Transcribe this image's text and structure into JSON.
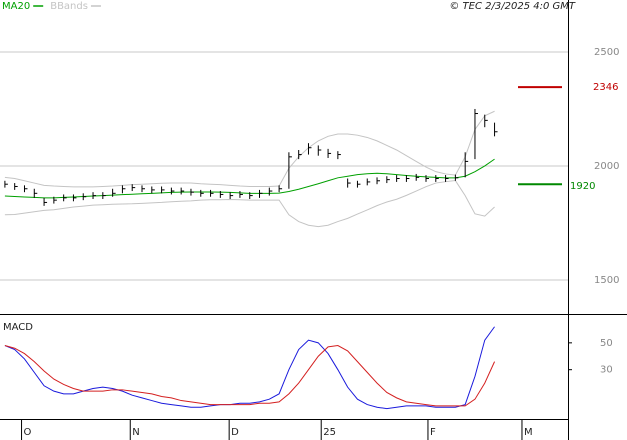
{
  "chart_data": [
    {
      "type": "ohlc",
      "source": "© TEC 2/3/2025 4:0 GMT",
      "x": [
        0,
        1,
        2,
        3,
        4,
        5,
        6,
        7,
        8,
        9,
        10,
        11,
        12,
        13,
        14,
        15,
        16,
        17,
        18,
        19,
        20,
        21,
        22,
        23,
        24,
        25,
        26,
        27,
        28,
        29,
        30,
        31,
        32,
        33,
        34,
        35,
        36,
        37,
        38,
        39,
        40,
        41,
        42,
        43,
        44,
        45,
        46,
        47,
        48,
        49,
        50
      ],
      "high": [
        1935,
        1925,
        1915,
        1900,
        1860,
        1865,
        1875,
        1875,
        1880,
        1885,
        1885,
        1900,
        1915,
        1920,
        1915,
        1910,
        1910,
        1905,
        1905,
        1900,
        1895,
        1895,
        1890,
        1885,
        1890,
        1885,
        1895,
        1905,
        1915,
        2060,
        2070,
        2100,
        2090,
        2075,
        2065,
        1945,
        1935,
        1945,
        1950,
        1955,
        1960,
        1960,
        1965,
        1960,
        1960,
        1960,
        1962,
        2060,
        2250,
        2225,
        2190
      ],
      "low": [
        1905,
        1895,
        1885,
        1860,
        1825,
        1835,
        1845,
        1845,
        1850,
        1855,
        1855,
        1865,
        1880,
        1890,
        1885,
        1880,
        1880,
        1875,
        1875,
        1870,
        1865,
        1865,
        1860,
        1855,
        1860,
        1855,
        1860,
        1870,
        1885,
        1900,
        2030,
        2050,
        2045,
        2035,
        2030,
        1905,
        1905,
        1915,
        1920,
        1925,
        1930,
        1930,
        1935,
        1930,
        1930,
        1930,
        1935,
        1950,
        2030,
        2170,
        2130
      ],
      "close": [
        1920,
        1910,
        1900,
        1880,
        1840,
        1850,
        1860,
        1860,
        1865,
        1870,
        1870,
        1880,
        1900,
        1905,
        1900,
        1895,
        1895,
        1890,
        1890,
        1885,
        1880,
        1880,
        1875,
        1870,
        1875,
        1870,
        1880,
        1890,
        1900,
        2040,
        2050,
        2080,
        2070,
        2055,
        2050,
        1925,
        1920,
        1930,
        1935,
        1940,
        1945,
        1945,
        1950,
        1945,
        1945,
        1945,
        1948,
        2020,
        2230,
        2200,
        2150
      ],
      "color": "#000000",
      "series": [
        {
          "name": "MA20",
          "color": "#00a000",
          "values": [
            1868,
            1866,
            1864,
            1862,
            1860,
            1860,
            1862,
            1864,
            1866,
            1868,
            1870,
            1872,
            1874,
            1876,
            1878,
            1880,
            1882,
            1884,
            1885,
            1886,
            1886,
            1886,
            1885,
            1884,
            1882,
            1880,
            1880,
            1880,
            1881,
            1888,
            1898,
            1910,
            1922,
            1935,
            1948,
            1955,
            1962,
            1966,
            1968,
            1966,
            1962,
            1958,
            1955,
            1952,
            1950,
            1948,
            1948,
            1955,
            1975,
            2000,
            2030
          ]
        },
        {
          "name": "BBands",
          "color": "#c4c4c4",
          "upper": [
            1950,
            1945,
            1935,
            1925,
            1915,
            1912,
            1910,
            1908,
            1908,
            1908,
            1910,
            1912,
            1915,
            1918,
            1920,
            1922,
            1924,
            1925,
            1925,
            1925,
            1922,
            1920,
            1918,
            1915,
            1912,
            1910,
            1910,
            1910,
            1912,
            1990,
            2040,
            2080,
            2110,
            2130,
            2140,
            2140,
            2135,
            2125,
            2110,
            2090,
            2070,
            2045,
            2020,
            1995,
            1975,
            1965,
            1960,
            2040,
            2160,
            2220,
            2240
          ],
          "lower": [
            1786,
            1787,
            1793,
            1799,
            1805,
            1808,
            1814,
            1820,
            1824,
            1828,
            1830,
            1832,
            1833,
            1834,
            1836,
            1838,
            1840,
            1843,
            1845,
            1847,
            1850,
            1852,
            1852,
            1853,
            1852,
            1850,
            1850,
            1850,
            1850,
            1786,
            1756,
            1740,
            1734,
            1740,
            1756,
            1770,
            1789,
            1807,
            1826,
            1842,
            1854,
            1871,
            1890,
            1909,
            1925,
            1931,
            1936,
            1870,
            1790,
            1780,
            1820
          ]
        }
      ],
      "levels": [
        {
          "value": 2346,
          "color": "#c00000"
        },
        {
          "value": 1920,
          "color": "#008800"
        }
      ],
      "xlim": [
        -0.5,
        57.5
      ],
      "xticks": [
        {
          "value": 1.7,
          "label": "O"
        },
        {
          "value": 12.8,
          "label": "N"
        },
        {
          "value": 22.9,
          "label": "D"
        },
        {
          "value": 32.3,
          "label": "25"
        },
        {
          "value": 43.2,
          "label": "F"
        },
        {
          "value": 52.8,
          "label": "M"
        }
      ],
      "ylim": [
        1355,
        2728
      ],
      "yticks": [
        1500,
        2000,
        2500
      ],
      "grid": true
    },
    {
      "type": "line",
      "title": "MACD",
      "series": [
        {
          "color": "#1a1adc",
          "values": [
            48,
            45,
            38,
            28,
            18,
            14,
            12,
            12,
            14,
            16,
            17,
            16,
            14,
            11,
            9,
            7,
            5,
            4,
            3,
            2,
            2,
            3,
            4,
            4,
            5,
            5,
            6,
            8,
            12,
            30,
            45,
            52,
            50,
            42,
            30,
            17,
            8,
            4,
            2,
            1,
            2,
            3,
            3,
            3,
            2,
            2,
            2,
            4,
            25,
            52,
            62
          ]
        },
        {
          "color": "#d42020",
          "values": [
            48,
            46,
            42,
            36,
            29,
            23,
            19,
            16,
            14,
            14,
            14,
            15,
            15,
            14,
            13,
            12,
            10,
            9,
            7,
            6,
            5,
            4,
            4,
            4,
            4,
            4,
            5,
            5,
            6,
            12,
            20,
            30,
            40,
            47,
            48,
            44,
            36,
            28,
            20,
            13,
            9,
            6,
            5,
            4,
            3,
            3,
            3,
            3,
            8,
            20,
            36
          ]
        }
      ],
      "ylim": [
        -6,
        70
      ],
      "yticks": [
        30,
        50
      ]
    }
  ]
}
